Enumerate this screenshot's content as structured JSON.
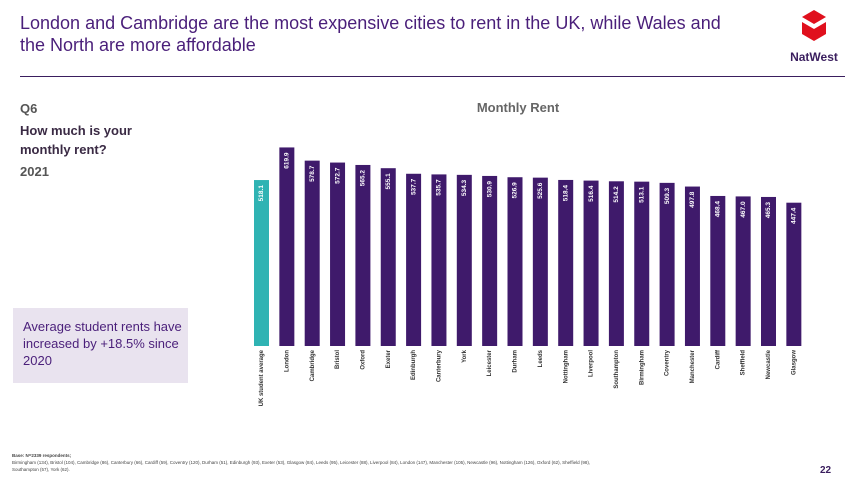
{
  "slide": {
    "title": "London and Cambridge are the most expensive cities to rent in the UK, while Wales and the North are more affordable",
    "question_code": "Q6",
    "question_text": "How much is your monthly rent?",
    "year": "2021",
    "callout": "Average student rents have increased by +18.5% since 2020",
    "brand": "NatWest",
    "page_number": "22",
    "footnote_base": "Base: N=2339 respondents;",
    "footnote_detail": "Birmingham (134), Bristol (104), Cambridge (86), Canterbury (66), Cardiff (59), Coventry (120), Durham (51), Edinburgh (93), Exeter (53), Glasgow (84), Leeds (95), Leicester (88), Liverpool (84), London (147), Manchester (105), Newcastle (96), Nottingham (126), Oxford (62), Sheffield (98), Southampton (57), York (62).",
    "colors": {
      "brand": "#4a1f7a",
      "highlight": "#2fb3b3",
      "bar": "#3f1a6b",
      "logo": "#e0101d"
    }
  },
  "chart_data": {
    "type": "bar",
    "title": "Monthly Rent",
    "categories": [
      "UK student average",
      "London",
      "Cambridge",
      "Bristol",
      "Oxford",
      "Exeter",
      "Edinburgh",
      "Canterbury",
      "York",
      "Leicester",
      "Durham",
      "Leeds",
      "Nottingham",
      "Liverpool",
      "Southampton",
      "Birmingham",
      "Coventry",
      "Manchester",
      "Cardiff",
      "Sheffield",
      "Newcastle",
      "Glasgow"
    ],
    "values": [
      518.1,
      619.9,
      578.7,
      572.7,
      565.2,
      555.1,
      537.7,
      535.7,
      534.3,
      530.9,
      526.9,
      525.6,
      518.4,
      516.4,
      514.2,
      513.1,
      509.3,
      497.8,
      468.4,
      467.0,
      465.3,
      447.4
    ],
    "labels": [
      "518.1",
      "619.9",
      "578.7",
      "572.7",
      "565.2",
      "555.1",
      "537.7",
      "535.7",
      "534.3",
      "530.9",
      "526.9",
      "525.6",
      "518.4",
      "516.4",
      "514.2",
      "513.1",
      "509.3",
      "497.8",
      "468.4",
      "467.0",
      "465.3",
      "447.4"
    ],
    "highlight_index": 0,
    "ylim": [
      0,
      640
    ],
    "grid": false,
    "legend": "none"
  }
}
